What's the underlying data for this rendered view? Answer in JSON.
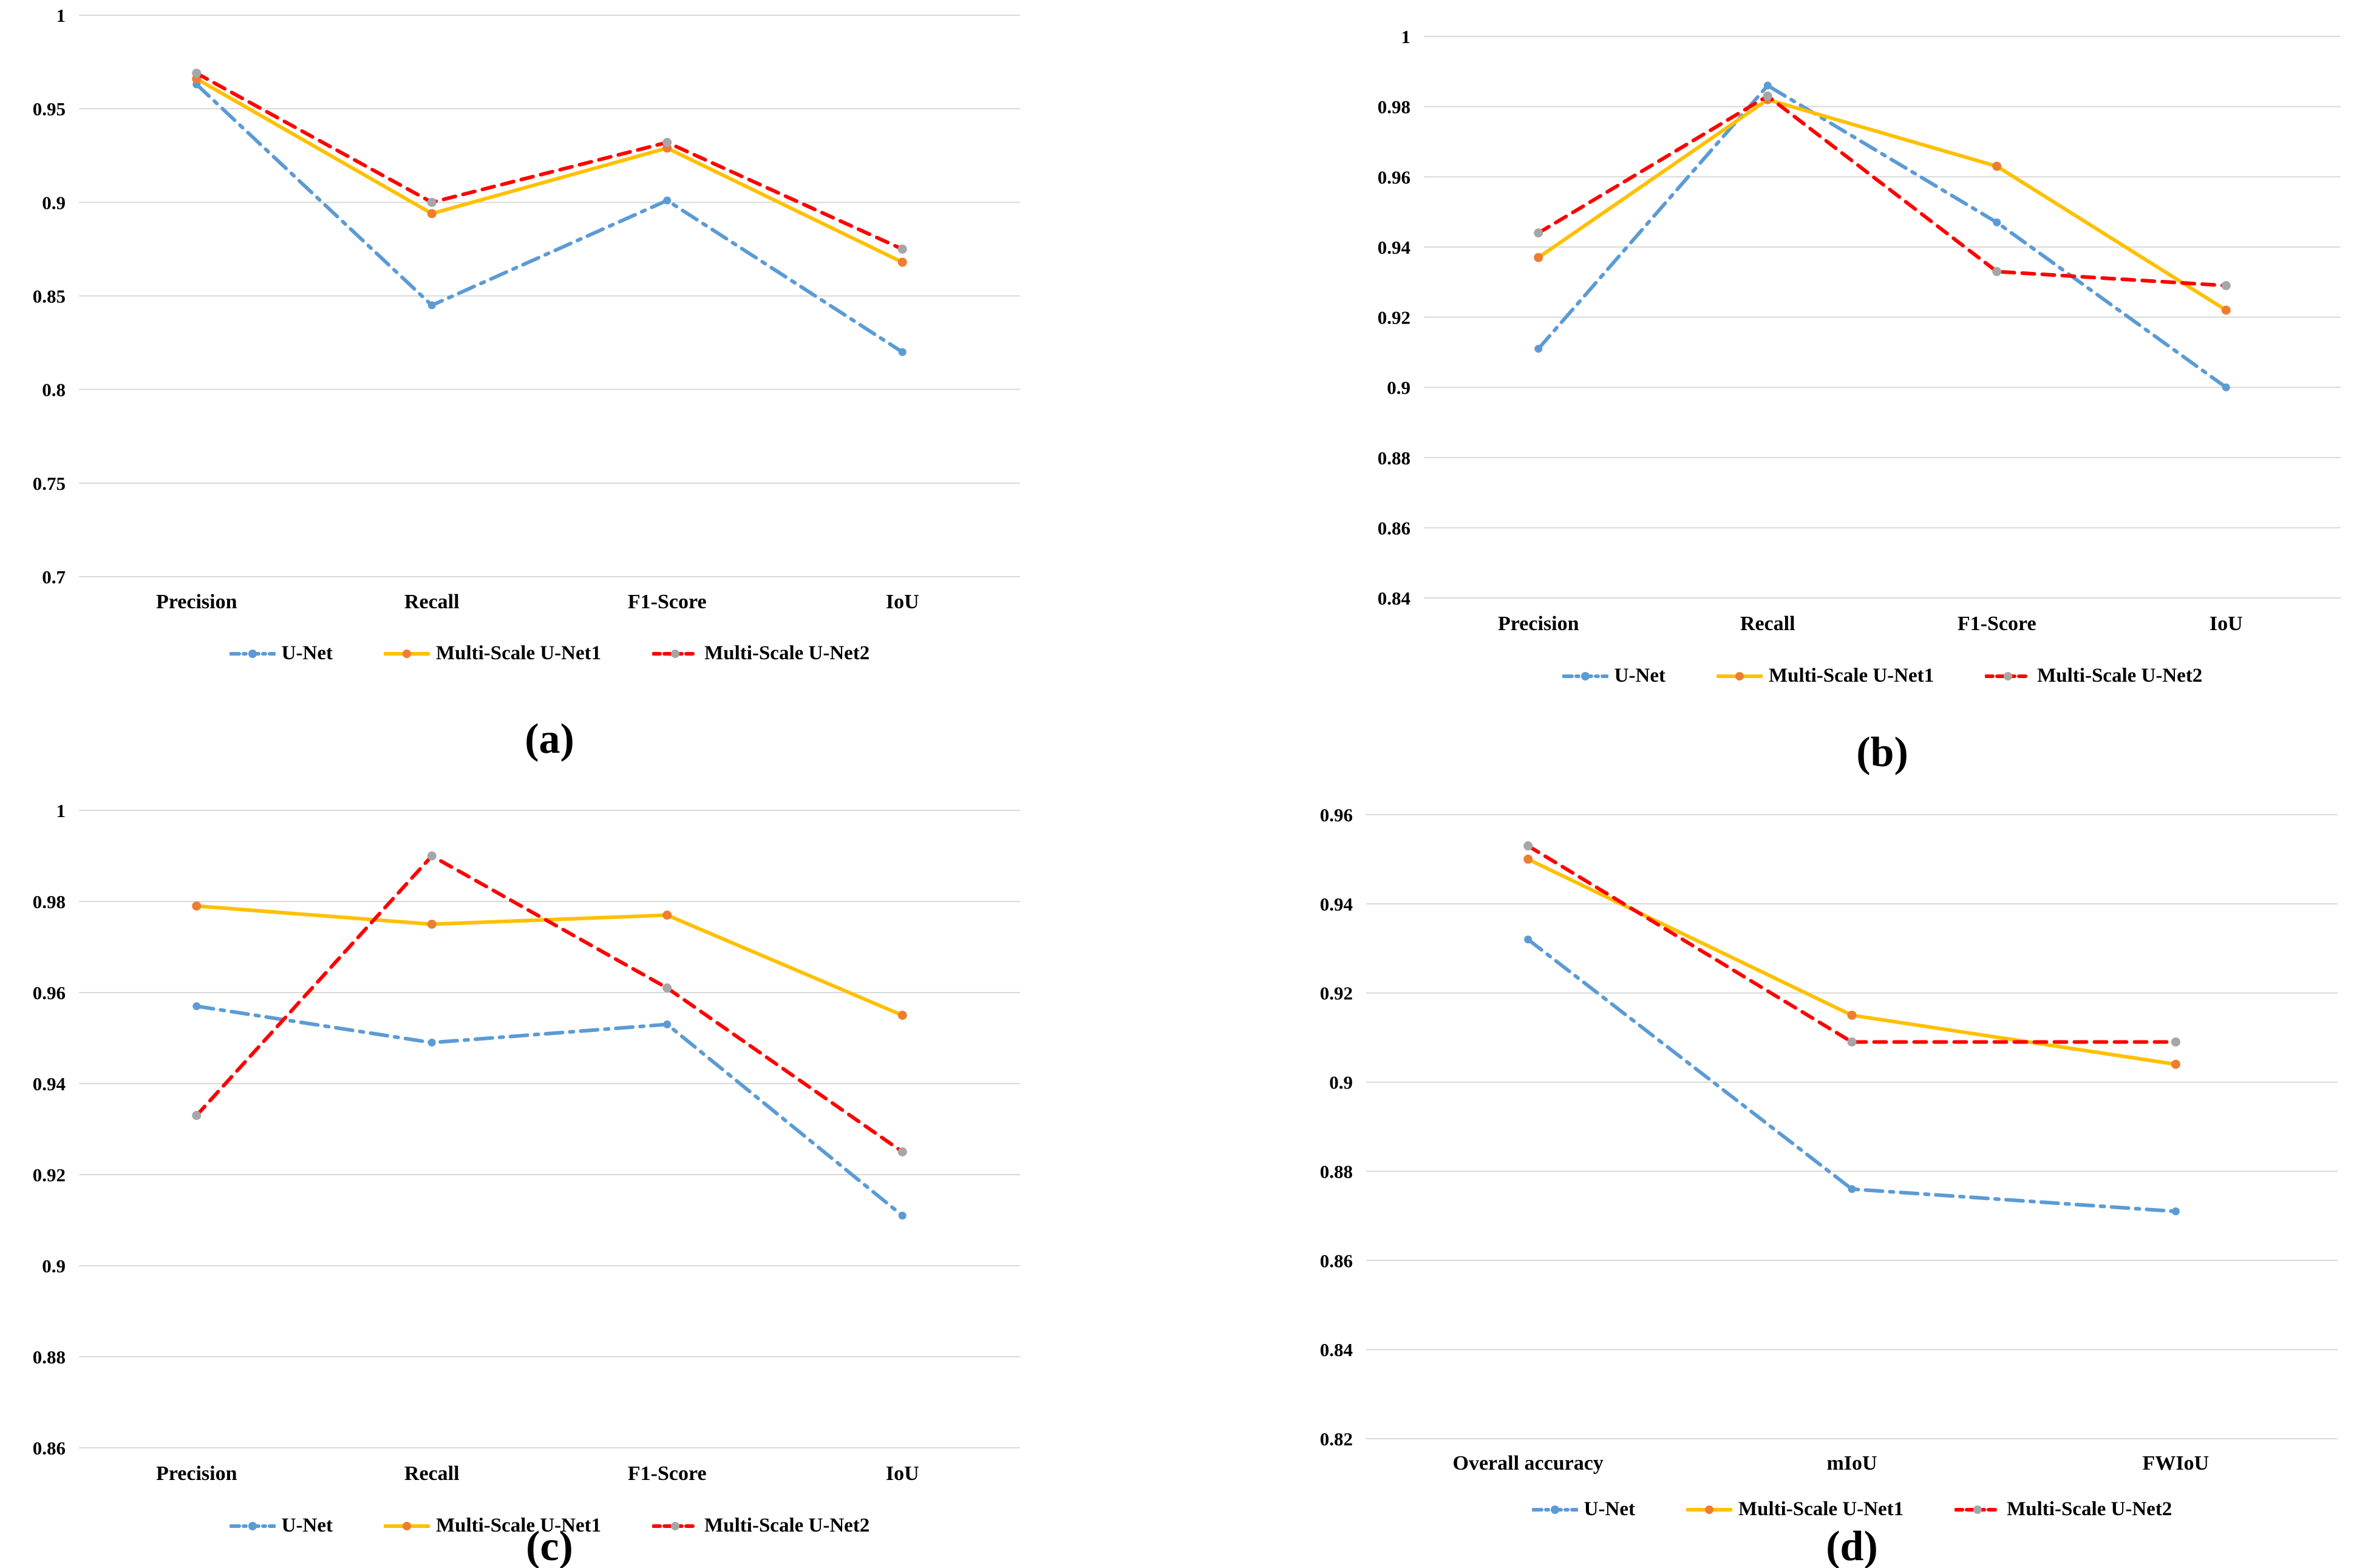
{
  "figure": {
    "background": "#ffffff",
    "gridline_color": "#d9d9d9",
    "text_color": "#000000"
  },
  "chart_data": [
    {
      "id": "a",
      "caption": "(a)",
      "type": "line",
      "grid": true,
      "legend_position": "bottom",
      "categories": [
        "Precision",
        "Recall",
        "F1-Score",
        "IoU"
      ],
      "ylim": [
        0.7,
        1.0
      ],
      "ytick_step": 0.05,
      "ytick_labels": [
        "1",
        "0.95",
        "0.9",
        "0.85",
        "0.8",
        "0.75",
        "0.7"
      ],
      "series": [
        {
          "name": "U-Net",
          "line_style": "dashdot",
          "color": "#5B9BD5",
          "marker_color": "#5B9BD5",
          "values": [
            0.963,
            0.845,
            0.901,
            0.82
          ]
        },
        {
          "name": "Multi-Scale U-Net1",
          "line_style": "solid",
          "color": "#FFC000",
          "marker_color": "#ED7D31",
          "values": [
            0.966,
            0.894,
            0.929,
            0.868
          ]
        },
        {
          "name": "Multi-Scale U-Net2",
          "line_style": "dashed",
          "color": "#FF0000",
          "marker_color": "#A6A6A6",
          "values": [
            0.969,
            0.9,
            0.932,
            0.875
          ]
        }
      ]
    },
    {
      "id": "b",
      "caption": "(b)",
      "type": "line",
      "grid": true,
      "legend_position": "bottom",
      "categories": [
        "Precision",
        "Recall",
        "F1-Score",
        "IoU"
      ],
      "ylim": [
        0.84,
        1.0
      ],
      "ytick_step": 0.02,
      "ytick_labels": [
        "1",
        "0.98",
        "0.96",
        "0.94",
        "0.92",
        "0.9",
        "0.88",
        "0.86",
        "0.84"
      ],
      "series": [
        {
          "name": "U-Net",
          "line_style": "dashdot",
          "color": "#5B9BD5",
          "marker_color": "#5B9BD5",
          "values": [
            0.911,
            0.986,
            0.947,
            0.9
          ]
        },
        {
          "name": "Multi-Scale U-Net1",
          "line_style": "solid",
          "color": "#FFC000",
          "marker_color": "#ED7D31",
          "values": [
            0.937,
            0.982,
            0.963,
            0.922
          ]
        },
        {
          "name": "Multi-Scale U-Net2",
          "line_style": "dashed",
          "color": "#FF0000",
          "marker_color": "#A6A6A6",
          "values": [
            0.944,
            0.983,
            0.933,
            0.929
          ]
        }
      ]
    },
    {
      "id": "c",
      "caption": "(c)",
      "type": "line",
      "grid": true,
      "legend_position": "bottom",
      "categories": [
        "Precision",
        "Recall",
        "F1-Score",
        "IoU"
      ],
      "ylim": [
        0.86,
        1.0
      ],
      "ytick_step": 0.02,
      "ytick_labels": [
        "1",
        "0.98",
        "0.96",
        "0.94",
        "0.92",
        "0.9",
        "0.88",
        "0.86"
      ],
      "series": [
        {
          "name": "U-Net",
          "line_style": "dashdot",
          "color": "#5B9BD5",
          "marker_color": "#5B9BD5",
          "values": [
            0.957,
            0.949,
            0.953,
            0.911
          ]
        },
        {
          "name": "Multi-Scale U-Net1",
          "line_style": "solid",
          "color": "#FFC000",
          "marker_color": "#ED7D31",
          "values": [
            0.979,
            0.975,
            0.977,
            0.955
          ]
        },
        {
          "name": "Multi-Scale U-Net2",
          "line_style": "dashed",
          "color": "#FF0000",
          "marker_color": "#A6A6A6",
          "values": [
            0.933,
            0.99,
            0.961,
            0.925
          ]
        }
      ]
    },
    {
      "id": "d",
      "caption": "(d)",
      "type": "line",
      "grid": true,
      "legend_position": "bottom",
      "categories": [
        "Overall accuracy",
        "mIoU",
        "FWIoU"
      ],
      "ylim": [
        0.82,
        0.96
      ],
      "ytick_step": 0.02,
      "ytick_labels": [
        "0.96",
        "0.94",
        "0.92",
        "0.9",
        "0.88",
        "0.86",
        "0.84",
        "0.82"
      ],
      "series": [
        {
          "name": "U-Net",
          "line_style": "dashdot",
          "color": "#5B9BD5",
          "marker_color": "#5B9BD5",
          "values": [
            0.932,
            0.876,
            0.871
          ]
        },
        {
          "name": "Multi-Scale U-Net1",
          "line_style": "solid",
          "color": "#FFC000",
          "marker_color": "#ED7D31",
          "values": [
            0.95,
            0.915,
            0.904
          ]
        },
        {
          "name": "Multi-Scale U-Net2",
          "line_style": "dashed",
          "color": "#FF0000",
          "marker_color": "#A6A6A6",
          "values": [
            0.953,
            0.909,
            0.909
          ]
        }
      ]
    }
  ]
}
